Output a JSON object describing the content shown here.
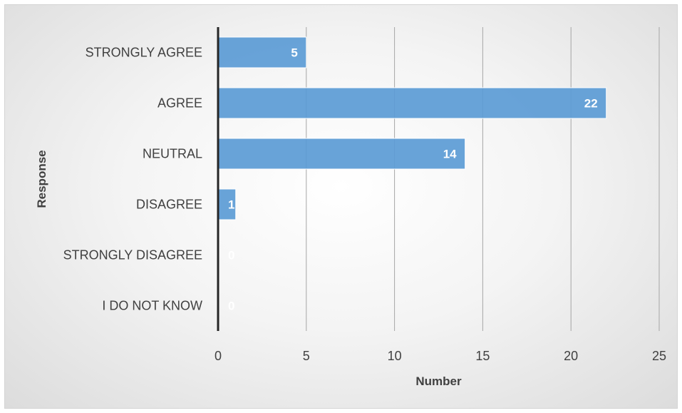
{
  "chart_data": {
    "type": "bar",
    "orientation": "horizontal",
    "title": "",
    "xlabel": "Number",
    "ylabel": "Response",
    "categories": [
      "STRONGLY AGREE",
      "AGREE",
      "NEUTRAL",
      "DISAGREE",
      "STRONGLY DISAGREE",
      "I DO NOT KNOW"
    ],
    "values": [
      5,
      22,
      14,
      1,
      0,
      0
    ],
    "xlim": [
      0,
      25
    ],
    "xticks": [
      0,
      5,
      10,
      15,
      20,
      25
    ],
    "grid": true,
    "legend": "none",
    "data_labels": true,
    "bar_color": "#5b9bd5"
  }
}
